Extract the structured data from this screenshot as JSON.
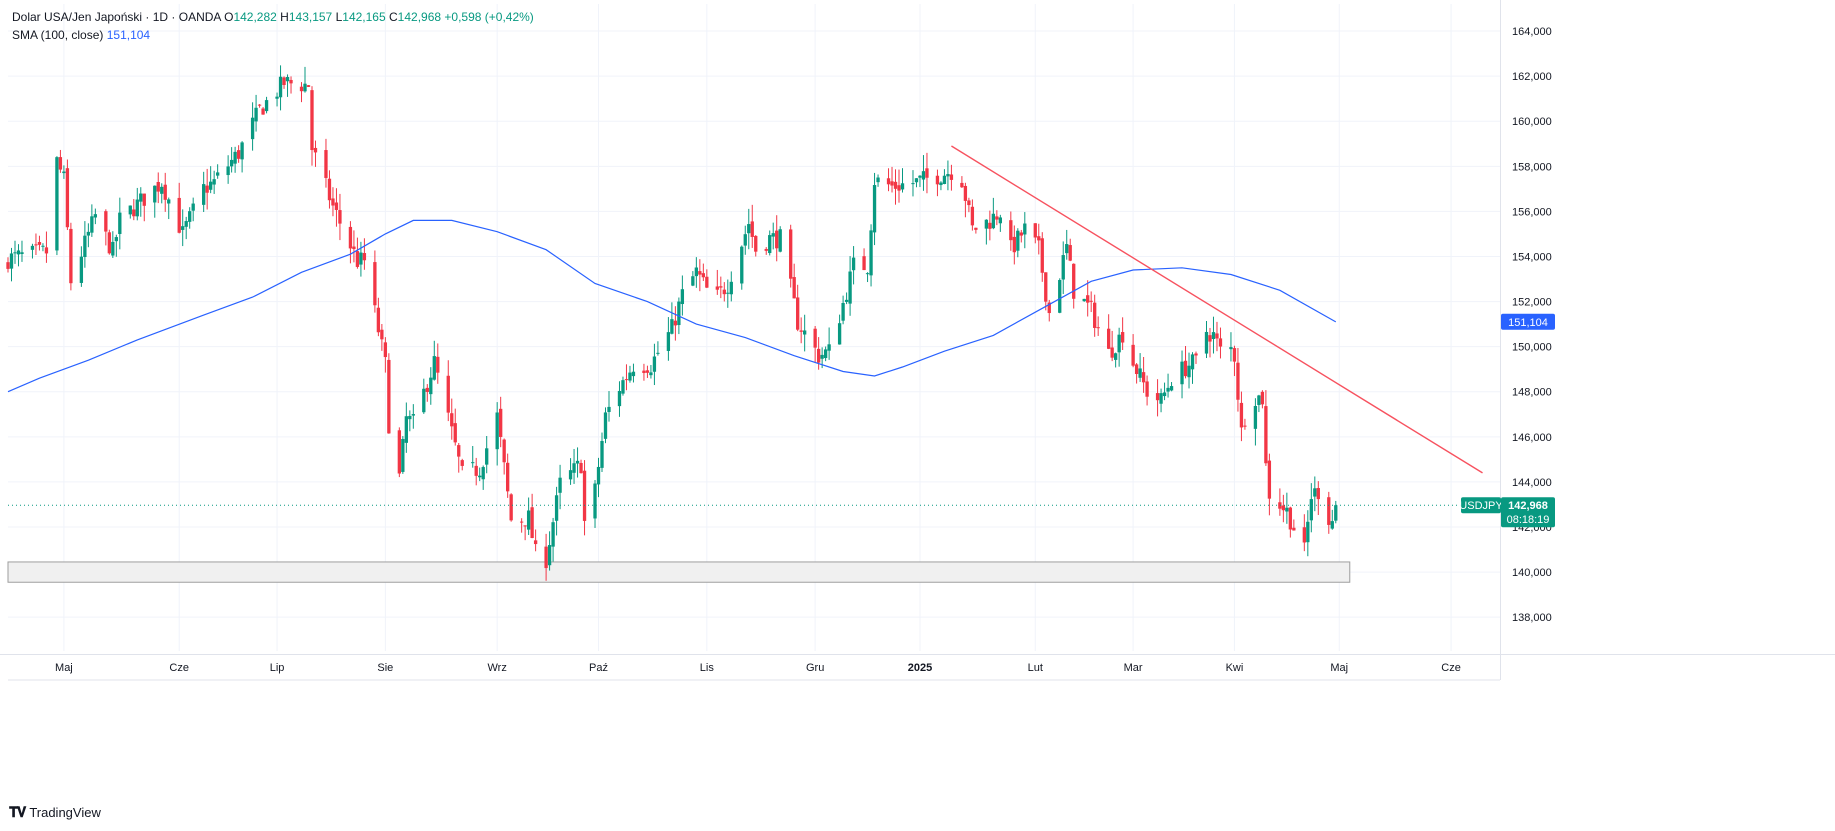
{
  "legend": {
    "symbol_desc": "Dolar USA/Jen Japoński · 1D · OANDA",
    "o_label": "O",
    "o_value": "142,282",
    "h_label": "H",
    "h_value": "143,157",
    "l_label": "L",
    "l_value": "142,165",
    "c_label": "C",
    "c_value": "142,968",
    "change": "+0,598 (+0,42%)",
    "sma_label": "SMA (100, close)",
    "sma_value": "151,104"
  },
  "branding": {
    "text": "TradingView"
  },
  "colors": {
    "up": "#089981",
    "down": "#f23645",
    "sma": "#2962ff",
    "trendline": "#f7525f",
    "grid": "#f0f3fa",
    "text": "#131722"
  },
  "chart_data": {
    "type": "candlestick",
    "symbol": "USDJPY",
    "ylim": [
      136.5,
      165.2
    ],
    "y_ticks": [
      "138,000",
      "140,000",
      "142,000",
      "144,000",
      "146,000",
      "148,000",
      "150,000",
      "152,000",
      "154,000",
      "156,000",
      "158,000",
      "160,000",
      "162,000",
      "164,000"
    ],
    "y_tick_values": [
      138,
      140,
      142,
      144,
      146,
      148,
      150,
      152,
      154,
      156,
      158,
      160,
      162,
      164
    ],
    "x_start": "2024-04-15",
    "x_end": "2025-06-16",
    "x_ticks": [
      {
        "label": "Maj",
        "date": "2024-05-01",
        "bold": false
      },
      {
        "label": "Cze",
        "date": "2024-06-03",
        "bold": false
      },
      {
        "label": "Lip",
        "date": "2024-07-01",
        "bold": false
      },
      {
        "label": "Sie",
        "date": "2024-08-01",
        "bold": false
      },
      {
        "label": "Wrz",
        "date": "2024-09-02",
        "bold": false
      },
      {
        "label": "Paź",
        "date": "2024-10-01",
        "bold": false
      },
      {
        "label": "Lis",
        "date": "2024-11-01",
        "bold": false
      },
      {
        "label": "Gru",
        "date": "2024-12-02",
        "bold": false
      },
      {
        "label": "2025",
        "date": "2025-01-01",
        "bold": true
      },
      {
        "label": "Lut",
        "date": "2025-02-03",
        "bold": false
      },
      {
        "label": "Mar",
        "date": "2025-03-03",
        "bold": false
      },
      {
        "label": "Kwi",
        "date": "2025-04-01",
        "bold": false
      },
      {
        "label": "Maj",
        "date": "2025-05-01",
        "bold": false
      },
      {
        "label": "Cze",
        "date": "2025-06-02",
        "bold": false
      }
    ],
    "price_path": [
      [
        "2024-04-15",
        153.9
      ],
      [
        "2024-04-26",
        154.2
      ],
      [
        "2024-04-29",
        158.2
      ],
      [
        "2024-05-01",
        157.4
      ],
      [
        "2024-05-03",
        152.9
      ],
      [
        "2024-05-10",
        155.8
      ],
      [
        "2024-05-15",
        154.2
      ],
      [
        "2024-05-17",
        155.6
      ],
      [
        "2024-05-29",
        157.3
      ],
      [
        "2024-06-04",
        155.0
      ],
      [
        "2024-06-10",
        157.0
      ],
      [
        "2024-06-13",
        157.3
      ],
      [
        "2024-06-20",
        158.6
      ],
      [
        "2024-06-26",
        160.5
      ],
      [
        "2024-07-03",
        161.7
      ],
      [
        "2024-07-10",
        161.6
      ],
      [
        "2024-07-11",
        158.8
      ],
      [
        "2024-07-17",
        156.2
      ],
      [
        "2024-07-24",
        153.8
      ],
      [
        "2024-07-26",
        153.8
      ],
      [
        "2024-08-01",
        149.2
      ],
      [
        "2024-08-02",
        146.6
      ],
      [
        "2024-08-05",
        144.2
      ],
      [
        "2024-08-07",
        146.8
      ],
      [
        "2024-08-09",
        146.6
      ],
      [
        "2024-08-15",
        149.3
      ],
      [
        "2024-08-23",
        144.3
      ],
      [
        "2024-08-28",
        144.6
      ],
      [
        "2024-09-02",
        146.9
      ],
      [
        "2024-09-06",
        142.3
      ],
      [
        "2024-09-11",
        142.4
      ],
      [
        "2024-09-13",
        140.8
      ],
      [
        "2024-09-16",
        140.6
      ],
      [
        "2024-09-20",
        143.9
      ],
      [
        "2024-09-26",
        144.8
      ],
      [
        "2024-09-27",
        142.2
      ],
      [
        "2024-09-30",
        143.6
      ],
      [
        "2024-10-03",
        146.9
      ],
      [
        "2024-10-07",
        148.2
      ],
      [
        "2024-10-11",
        149.2
      ],
      [
        "2024-10-16",
        149.2
      ],
      [
        "2024-10-22",
        150.8
      ],
      [
        "2024-10-25",
        152.3
      ],
      [
        "2024-10-29",
        153.3
      ],
      [
        "2024-11-01",
        152.5
      ],
      [
        "2024-11-04",
        152.2
      ],
      [
        "2024-11-07",
        152.8
      ],
      [
        "2024-11-13",
        155.5
      ],
      [
        "2024-11-15",
        154.3
      ],
      [
        "2024-11-19",
        154.8
      ],
      [
        "2024-11-22",
        154.8
      ],
      [
        "2024-11-27",
        151.1
      ],
      [
        "2024-12-03",
        149.6
      ],
      [
        "2024-12-06",
        149.8
      ],
      [
        "2024-12-10",
        151.9
      ],
      [
        "2024-12-13",
        153.6
      ],
      [
        "2024-12-17",
        153.6
      ],
      [
        "2024-12-19",
        157.4
      ],
      [
        "2024-12-24",
        157.1
      ],
      [
        "2024-12-31",
        157.3
      ],
      [
        "2025-01-10",
        157.8
      ],
      [
        "2025-01-13",
        157.4
      ],
      [
        "2025-01-16",
        155.2
      ],
      [
        "2025-01-21",
        155.6
      ],
      [
        "2025-01-24",
        156.0
      ],
      [
        "2025-01-27",
        154.3
      ],
      [
        "2025-01-31",
        155.2
      ],
      [
        "2025-02-04",
        154.3
      ],
      [
        "2025-02-07",
        151.5
      ],
      [
        "2025-02-12",
        154.4
      ],
      [
        "2025-02-14",
        152.5
      ],
      [
        "2025-02-19",
        151.6
      ],
      [
        "2025-02-24",
        149.7
      ],
      [
        "2025-02-28",
        150.6
      ],
      [
        "2025-03-03",
        149.3
      ],
      [
        "2025-03-07",
        148.0
      ],
      [
        "2025-03-11",
        147.6
      ],
      [
        "2025-03-14",
        148.6
      ],
      [
        "2025-03-19",
        149.2
      ],
      [
        "2025-03-21",
        149.3
      ],
      [
        "2025-03-24",
        150.7
      ],
      [
        "2025-03-26",
        150.5
      ],
      [
        "2025-03-28",
        149.8
      ],
      [
        "2025-03-31",
        149.9
      ],
      [
        "2025-04-01",
        149.6
      ],
      [
        "2025-04-03",
        146.2
      ],
      [
        "2025-04-04",
        146.9
      ],
      [
        "2025-04-07",
        147.8
      ],
      [
        "2025-04-09",
        147.7
      ],
      [
        "2025-04-10",
        144.7
      ],
      [
        "2025-04-11",
        143.5
      ],
      [
        "2025-04-16",
        142.7
      ],
      [
        "2025-04-21",
        140.9
      ],
      [
        "2025-04-23",
        143.4
      ],
      [
        "2025-04-25",
        143.6
      ],
      [
        "2025-04-28",
        142.4
      ],
      [
        "2025-04-29",
        142.3
      ],
      [
        "2025-04-30",
        142.97
      ]
    ],
    "sma_path": [
      [
        "2024-04-15",
        148.0
      ],
      [
        "2024-04-24",
        148.6
      ],
      [
        "2024-05-08",
        149.4
      ],
      [
        "2024-05-22",
        150.3
      ],
      [
        "2024-06-10",
        151.4
      ],
      [
        "2024-06-24",
        152.2
      ],
      [
        "2024-07-08",
        153.3
      ],
      [
        "2024-07-22",
        154.1
      ],
      [
        "2024-08-01",
        155.0
      ],
      [
        "2024-08-09",
        155.6
      ],
      [
        "2024-08-20",
        155.6
      ],
      [
        "2024-09-02",
        155.1
      ],
      [
        "2024-09-16",
        154.3
      ],
      [
        "2024-09-30",
        152.8
      ],
      [
        "2024-10-15",
        152.0
      ],
      [
        "2024-10-29",
        151.0
      ],
      [
        "2024-11-12",
        150.4
      ],
      [
        "2024-11-26",
        149.6
      ],
      [
        "2024-12-10",
        148.9
      ],
      [
        "2024-12-19",
        148.7
      ],
      [
        "2024-12-27",
        149.1
      ],
      [
        "2025-01-08",
        149.8
      ],
      [
        "2025-01-22",
        150.5
      ],
      [
        "2025-02-05",
        151.7
      ],
      [
        "2025-02-19",
        152.9
      ],
      [
        "2025-03-03",
        153.4
      ],
      [
        "2025-03-17",
        153.5
      ],
      [
        "2025-03-31",
        153.2
      ],
      [
        "2025-04-14",
        152.5
      ],
      [
        "2025-04-30",
        151.1
      ]
    ],
    "trendline": {
      "from": [
        "2025-01-10",
        158.9
      ],
      "to": [
        "2025-06-11",
        144.4
      ]
    },
    "support_zone": {
      "from": "2024-04-15",
      "to": "2025-04-30",
      "y_low": 139.55,
      "y_high": 140.45
    },
    "last_price": 142.968,
    "last_price_label": "142,968",
    "countdown": "08:18:19",
    "sma_last_label": "151,104"
  }
}
